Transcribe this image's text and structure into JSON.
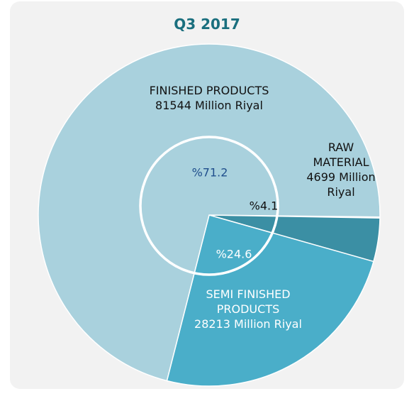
{
  "chart_data": {
    "type": "pie",
    "title": "Q3 2017",
    "categories": [
      "RAW MATERIAL",
      "SEMI FINISHED PRODUCTS",
      "FINISHED PRODUCTS"
    ],
    "values": [
      4.1,
      24.6,
      71.2
    ],
    "value_labels": [
      "%4.1",
      "%24.6",
      "%71.2"
    ],
    "amounts": [
      4699,
      28213,
      81544
    ],
    "amount_unit": "Million Riyal",
    "colors": [
      "#3b8fa4",
      "#4aaec9",
      "#a9d1dd"
    ]
  }
}
